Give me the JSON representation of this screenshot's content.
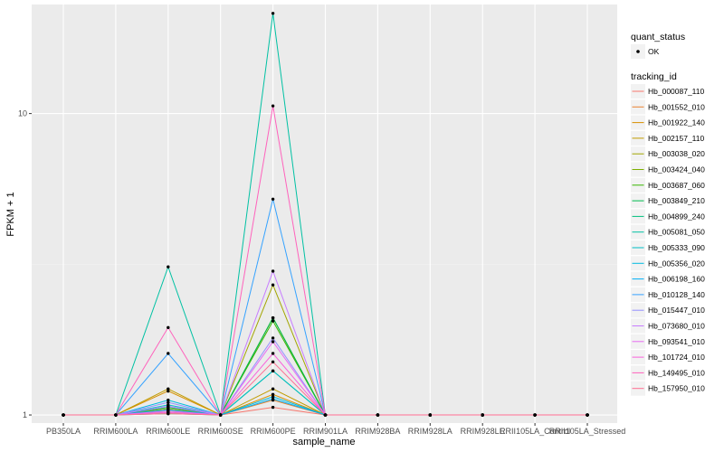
{
  "chart_data": {
    "type": "line",
    "title": "",
    "xlabel": "sample_name",
    "ylabel": "FPKM + 1",
    "y_scale": "log",
    "ylim": [
      0.94,
      23
    ],
    "y_ticks": [
      1,
      10
    ],
    "grid": true,
    "legend_placement": "right",
    "categories": [
      "PB350LA",
      "RRIM600LA",
      "RRIM600LE",
      "RRIM600SE",
      "RRIM600PE",
      "RRIM901LA",
      "RRIM928BA",
      "RRIM928LA",
      "RRIM928LE",
      "RRII105LA_Control",
      "RRII105LA_Stressed"
    ],
    "shape_legend": {
      "title": "quant_status",
      "items": [
        "OK"
      ]
    },
    "color_legend_title": "tracking_id",
    "series": [
      {
        "name": "Hb_000087_110",
        "color": "#F8766D",
        "values": [
          1,
          1,
          1.06,
          1,
          1.06,
          1,
          1,
          1,
          1,
          1,
          1
        ]
      },
      {
        "name": "Hb_001552_010",
        "color": "#EA8331",
        "values": [
          1,
          1,
          1.03,
          1,
          1.12,
          1,
          1,
          1,
          1,
          1,
          1
        ]
      },
      {
        "name": "Hb_001922_140",
        "color": "#D89000",
        "values": [
          1,
          1,
          1.2,
          1,
          1.17,
          1,
          1,
          1,
          1,
          1,
          1
        ]
      },
      {
        "name": "Hb_002157_110",
        "color": "#C09B00",
        "values": [
          1,
          1,
          1.22,
          1,
          1.22,
          1,
          1,
          1,
          1,
          1,
          1
        ]
      },
      {
        "name": "Hb_003038_020",
        "color": "#A3A500",
        "values": [
          1,
          1,
          1.05,
          1,
          2.7,
          1,
          1,
          1,
          1,
          1,
          1
        ]
      },
      {
        "name": "Hb_003424_040",
        "color": "#7CAE00",
        "values": [
          1,
          1,
          1.04,
          1,
          2.1,
          1,
          1,
          1,
          1,
          1,
          1
        ]
      },
      {
        "name": "Hb_003687_060",
        "color": "#39B600",
        "values": [
          1,
          1,
          1.02,
          1,
          2.05,
          1,
          1,
          1,
          1,
          1,
          1
        ]
      },
      {
        "name": "Hb_003849_210",
        "color": "#00BB4E",
        "values": [
          1,
          1,
          1.01,
          1,
          2.1,
          1,
          1,
          1,
          1,
          1,
          1
        ]
      },
      {
        "name": "Hb_004899_240",
        "color": "#00BF7D",
        "values": [
          1,
          1,
          1.06,
          1,
          1.4,
          1,
          1,
          1,
          1,
          1,
          1
        ]
      },
      {
        "name": "Hb_005081_050",
        "color": "#00C1A3",
        "values": [
          1,
          1,
          3.1,
          1,
          21.5,
          1,
          1,
          1,
          1,
          1,
          1
        ]
      },
      {
        "name": "Hb_005333_090",
        "color": "#00BFC4",
        "values": [
          1,
          1,
          1.08,
          1,
          1.4,
          1,
          1,
          1,
          1,
          1,
          1
        ]
      },
      {
        "name": "Hb_005356_020",
        "color": "#00BAE0",
        "values": [
          1,
          1,
          1.12,
          1,
          1.15,
          1,
          1,
          1,
          1,
          1,
          1
        ]
      },
      {
        "name": "Hb_006198_160",
        "color": "#00B0F6",
        "values": [
          1,
          1,
          1.04,
          1,
          1.13,
          1,
          1,
          1,
          1,
          1,
          1
        ]
      },
      {
        "name": "Hb_010128_140",
        "color": "#35A2FF",
        "values": [
          1,
          1,
          1.6,
          1,
          5.2,
          1,
          1,
          1,
          1,
          1,
          1
        ]
      },
      {
        "name": "Hb_015447_010",
        "color": "#9590FF",
        "values": [
          1,
          1,
          1.1,
          1,
          1.8,
          1,
          1,
          1,
          1,
          1,
          1
        ]
      },
      {
        "name": "Hb_073680_010",
        "color": "#C77CFF",
        "values": [
          1,
          1,
          1.07,
          1,
          3.0,
          1,
          1,
          1,
          1,
          1,
          1
        ]
      },
      {
        "name": "Hb_093541_010",
        "color": "#E76BF3",
        "values": [
          1,
          1,
          1.03,
          1,
          1.75,
          1,
          1,
          1,
          1,
          1,
          1
        ]
      },
      {
        "name": "Hb_101724_010",
        "color": "#FA62DB",
        "values": [
          1,
          1,
          1.02,
          1,
          1.6,
          1,
          1,
          1,
          1,
          1,
          1
        ]
      },
      {
        "name": "Hb_149495_010",
        "color": "#FF62BC",
        "values": [
          1,
          1,
          1.95,
          1,
          10.6,
          1,
          1,
          1,
          1,
          1,
          1
        ]
      },
      {
        "name": "Hb_157950_010",
        "color": "#FF6C91",
        "values": [
          1,
          1,
          1.01,
          1,
          1.5,
          1,
          1,
          1,
          1,
          1,
          1
        ]
      }
    ]
  }
}
